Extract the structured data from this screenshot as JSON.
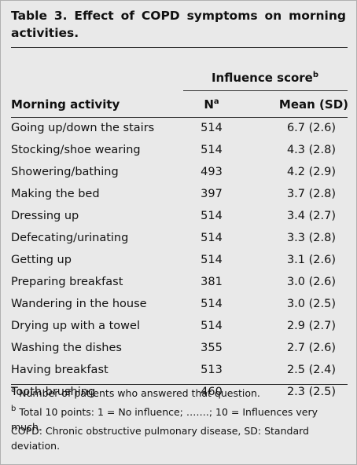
{
  "title": "Table 3. Effect of COPD symptoms on morning activities.",
  "table": {
    "group_header": {
      "text": "Influence score",
      "sup": "b"
    },
    "columns": [
      {
        "text": "Morning activity"
      },
      {
        "text": "N",
        "sup": "a"
      },
      {
        "text": "Mean (SD)"
      }
    ],
    "rows": [
      [
        "Going up/down the stairs",
        "514",
        "6.7 (2.6)"
      ],
      [
        "Stocking/shoe wearing",
        "514",
        "4.3 (2.8)"
      ],
      [
        "Showering/bathing",
        "493",
        "4.2 (2.9)"
      ],
      [
        "Making the bed",
        "397",
        "3.7 (2.8)"
      ],
      [
        "Dressing up",
        "514",
        "3.4 (2.7)"
      ],
      [
        "Defecating/urinating",
        "514",
        "3.3 (2.8)"
      ],
      [
        "Getting up",
        "514",
        "3.1 (2.6)"
      ],
      [
        "Preparing breakfast",
        "381",
        "3.0 (2.6)"
      ],
      [
        "Wandering in the house",
        "514",
        "3.0 (2.5)"
      ],
      [
        "Drying up with a towel",
        "514",
        "2.9 (2.7)"
      ],
      [
        "Washing the dishes",
        "355",
        "2.7 (2.6)"
      ],
      [
        "Having breakfast",
        "513",
        "2.5 (2.4)"
      ],
      [
        "Tooth brushing",
        "460",
        "2.3 (2.5)"
      ]
    ]
  },
  "footnotes": [
    {
      "sup": "a",
      "text": "Number of patients who answered that question."
    },
    {
      "sup": "b",
      "text": "Total 10 points: 1 = No influence; …….; 10 = Influences very much."
    },
    {
      "text": "COPD: Chronic obstructive pulmonary disease, SD: Standard deviation."
    }
  ]
}
